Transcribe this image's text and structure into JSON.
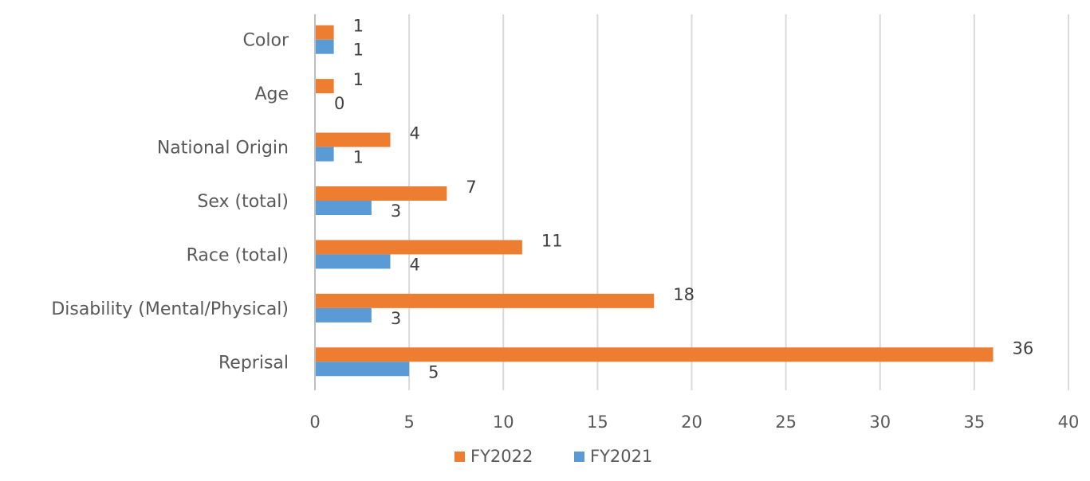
{
  "chart_data": {
    "type": "bar",
    "orientation": "horizontal",
    "categories": [
      "Color",
      "Age",
      "National Origin",
      "Sex (total)",
      "Race (total)",
      "Disability (Mental/Physical)",
      "Reprisal"
    ],
    "series": [
      {
        "name": "FY2022",
        "color": "#ED7D31",
        "values": [
          1,
          1,
          4,
          7,
          11,
          18,
          36
        ]
      },
      {
        "name": "FY2021",
        "color": "#5B9BD5",
        "values": [
          1,
          0,
          1,
          3,
          4,
          3,
          5
        ]
      }
    ],
    "xlim": [
      0,
      40
    ],
    "x_ticks": [
      "0",
      "5",
      "10",
      "15",
      "20",
      "25",
      "30",
      "35",
      "40"
    ],
    "grid": true,
    "legend": {
      "position": "bottom",
      "entries": [
        "FY2022",
        "FY2021"
      ]
    },
    "data_labels": true
  }
}
